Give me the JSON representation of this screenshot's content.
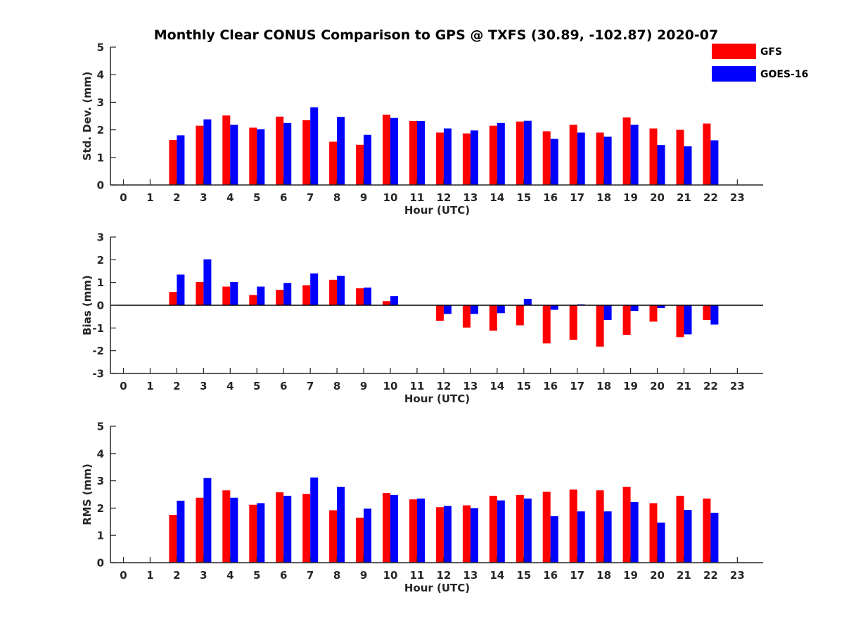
{
  "title": "Monthly Clear CONUS Comparison to GPS @ TXFS (30.89, -102.87) 2020-07",
  "colors": {
    "GFS": "#ff0000",
    "GOES-16": "#0000ff",
    "axis": "#262626"
  },
  "legend": {
    "position": "top-right",
    "entries": [
      "GFS",
      "GOES-16"
    ]
  },
  "chart_data": [
    {
      "type": "bar",
      "xlabel": "Hour (UTC)",
      "ylabel": "Std. Dev. (mm)",
      "ylim": [
        0,
        5
      ],
      "yticks": [
        "0",
        "1",
        "2",
        "3",
        "4",
        "5"
      ],
      "categories": [
        "0",
        "1",
        "2",
        "3",
        "4",
        "5",
        "6",
        "7",
        "8",
        "9",
        "10",
        "11",
        "12",
        "13",
        "14",
        "15",
        "16",
        "17",
        "18",
        "19",
        "20",
        "21",
        "22",
        "23"
      ],
      "grid": false,
      "series": [
        {
          "name": "GFS",
          "values": [
            null,
            null,
            1.63,
            2.15,
            2.52,
            2.08,
            2.48,
            2.35,
            1.57,
            1.46,
            2.55,
            2.32,
            1.9,
            1.87,
            2.15,
            2.3,
            1.95,
            2.18,
            1.9,
            2.45,
            2.05,
            2.0,
            2.23,
            null
          ]
        },
        {
          "name": "GOES-16",
          "values": [
            null,
            null,
            1.8,
            2.38,
            2.18,
            2.02,
            2.25,
            2.82,
            2.47,
            1.82,
            2.43,
            2.32,
            2.05,
            1.98,
            2.25,
            2.33,
            1.67,
            1.9,
            1.75,
            2.18,
            1.45,
            1.4,
            1.62,
            null
          ]
        }
      ]
    },
    {
      "type": "bar",
      "xlabel": "Hour (UTC)",
      "ylabel": "Bias (mm)",
      "ylim": [
        -3,
        3
      ],
      "yticks": [
        "-3",
        "-2",
        "-1",
        "0",
        "1",
        "2",
        "3"
      ],
      "categories": [
        "0",
        "1",
        "2",
        "3",
        "4",
        "5",
        "6",
        "7",
        "8",
        "9",
        "10",
        "11",
        "12",
        "13",
        "14",
        "15",
        "16",
        "17",
        "18",
        "19",
        "20",
        "21",
        "22",
        "23"
      ],
      "grid": false,
      "zero_line": true,
      "series": [
        {
          "name": "GFS",
          "values": [
            null,
            null,
            0.58,
            1.02,
            0.82,
            0.45,
            0.68,
            0.88,
            1.12,
            0.75,
            0.18,
            null,
            -0.68,
            -0.98,
            -1.12,
            -0.88,
            -1.68,
            -1.52,
            -1.82,
            -1.3,
            -0.72,
            -1.4,
            -0.65,
            null
          ]
        },
        {
          "name": "GOES-16",
          "values": [
            null,
            null,
            1.35,
            2.02,
            1.02,
            0.82,
            0.98,
            1.4,
            1.3,
            0.78,
            0.4,
            null,
            -0.38,
            -0.38,
            -0.35,
            0.28,
            -0.2,
            0.04,
            -0.65,
            -0.25,
            -0.12,
            -1.28,
            -0.85,
            null
          ]
        }
      ]
    },
    {
      "type": "bar",
      "xlabel": "Hour (UTC)",
      "ylabel": "RMS (mm)",
      "ylim": [
        0,
        5
      ],
      "yticks": [
        "0",
        "1",
        "2",
        "3",
        "4",
        "5"
      ],
      "categories": [
        "0",
        "1",
        "2",
        "3",
        "4",
        "5",
        "6",
        "7",
        "8",
        "9",
        "10",
        "11",
        "12",
        "13",
        "14",
        "15",
        "16",
        "17",
        "18",
        "19",
        "20",
        "21",
        "22",
        "23"
      ],
      "grid": false,
      "series": [
        {
          "name": "GFS",
          "values": [
            null,
            null,
            1.75,
            2.38,
            2.65,
            2.12,
            2.58,
            2.52,
            1.92,
            1.65,
            2.55,
            2.32,
            2.03,
            2.1,
            2.45,
            2.48,
            2.6,
            2.68,
            2.65,
            2.78,
            2.18,
            2.45,
            2.35,
            null
          ]
        },
        {
          "name": "GOES-16",
          "values": [
            null,
            null,
            2.27,
            3.1,
            2.38,
            2.18,
            2.45,
            3.12,
            2.78,
            1.98,
            2.48,
            2.35,
            2.08,
            2.0,
            2.28,
            2.35,
            1.7,
            1.88,
            1.88,
            2.22,
            1.47,
            1.93,
            1.83,
            null
          ]
        }
      ]
    }
  ]
}
